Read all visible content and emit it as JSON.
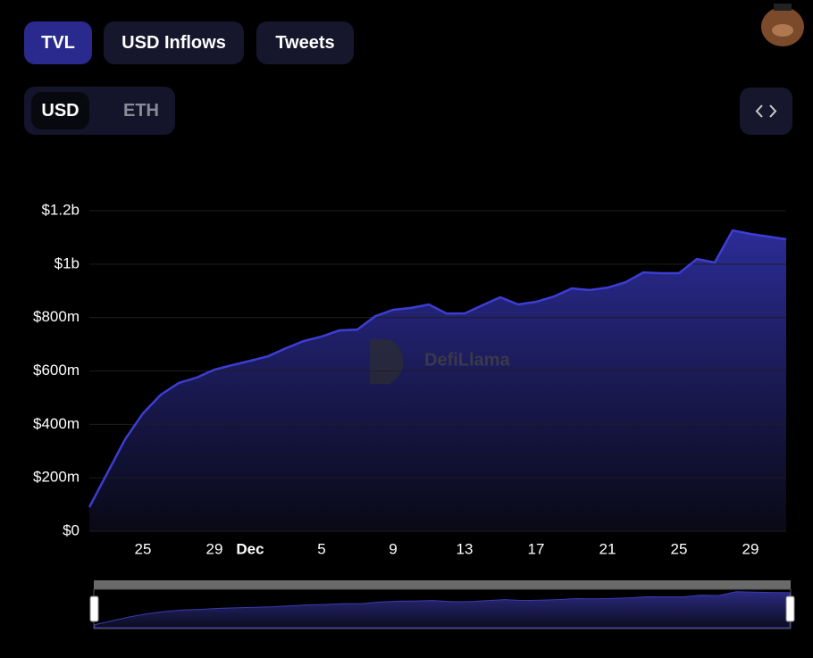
{
  "tabs": [
    "TVL",
    "USD Inflows",
    "Tweets"
  ],
  "currency_toggle": [
    "USD",
    "ETH"
  ],
  "watermark": "DefiLlama",
  "chart_data": {
    "type": "area",
    "categories": [
      null,
      null,
      null,
      "25",
      null,
      null,
      null,
      "29",
      null,
      "Dec",
      null,
      null,
      null,
      "5",
      null,
      null,
      null,
      "9",
      null,
      null,
      null,
      "13",
      null,
      null,
      null,
      "17",
      null,
      null,
      null,
      "21",
      null,
      null,
      null,
      "25",
      null,
      null,
      null,
      "29",
      null,
      null
    ],
    "series": [
      {
        "name": "TVL",
        "color": "#3d3dd6",
        "values": [
          90000000,
          217000000,
          344000000,
          441000000,
          511000000,
          555000000,
          575000000,
          605000000,
          622000000,
          638000000,
          655000000,
          685000000,
          712000000,
          729000000,
          752000000,
          755000000,
          805000000,
          829000000,
          836000000,
          849000000,
          815000000,
          815000000,
          846000000,
          876000000,
          849000000,
          859000000,
          879000000,
          909000000,
          903000000,
          912000000,
          932000000,
          969000000,
          966000000,
          966000000,
          1019000000,
          1006000000,
          1126000000,
          1113000000,
          1103000000,
          1093000000
        ]
      }
    ],
    "ylim": [
      0,
      1200000000
    ],
    "yticks": [
      {
        "value": 0,
        "label": "$0"
      },
      {
        "value": 200000000,
        "label": "$200m"
      },
      {
        "value": 400000000,
        "label": "$400m"
      },
      {
        "value": 600000000,
        "label": "$600m"
      },
      {
        "value": 800000000,
        "label": "$800m"
      },
      {
        "value": 1000000000,
        "label": "$1b"
      },
      {
        "value": 1200000000,
        "label": "$1.2b"
      }
    ],
    "grid": true
  }
}
